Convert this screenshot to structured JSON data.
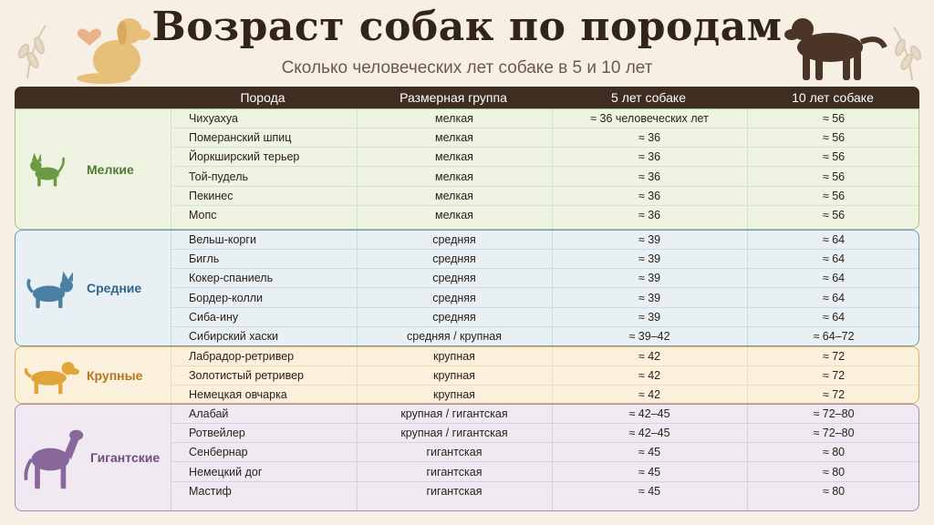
{
  "title": "Возраст собак по породам",
  "subtitle": "Сколько человеческих лет собаке в 5 и 10 лет",
  "columns": [
    "Порода",
    "Размерная группа",
    "5 лет собаке",
    "10 лет собаке"
  ],
  "colors": {
    "header": "#3f2d22",
    "small": "#5f8a3c",
    "medium": "#3f7196",
    "large": "#d69c2f",
    "giant": "#7f5c8f"
  },
  "groups": [
    {
      "label": "Мелкие",
      "icon": "small-dog-icon",
      "rows": [
        {
          "breed": "Чихуахуа",
          "size": "мелкая",
          "age5": "≈ 36 человеческих лет",
          "age10": "≈ 56"
        },
        {
          "breed": "Померанский шпиц",
          "size": "мелкая",
          "age5": "≈ 36",
          "age10": "≈ 56"
        },
        {
          "breed": "Йоркширский терьер",
          "size": "мелкая",
          "age5": "≈ 36",
          "age10": "≈ 56"
        },
        {
          "breed": "Той-пудель",
          "size": "мелкая",
          "age5": "≈ 36",
          "age10": "≈ 56"
        },
        {
          "breed": "Пекинес",
          "size": "мелкая",
          "age5": "≈ 36",
          "age10": "≈ 56"
        },
        {
          "breed": "Мопс",
          "size": "мелкая",
          "age5": "≈ 36",
          "age10": "≈ 56"
        }
      ]
    },
    {
      "label": "Средние",
      "icon": "medium-dog-icon",
      "rows": [
        {
          "breed": "Вельш-корги",
          "size": "средняя",
          "age5": "≈ 39",
          "age10": "≈ 64"
        },
        {
          "breed": "Бигль",
          "size": "средняя",
          "age5": "≈ 39",
          "age10": "≈ 64"
        },
        {
          "breed": "Кокер-спаниель",
          "size": "средняя",
          "age5": "≈ 39",
          "age10": "≈ 64"
        },
        {
          "breed": "Бордер-колли",
          "size": "средняя",
          "age5": "≈ 39",
          "age10": "≈ 64"
        },
        {
          "breed": "Сиба-ину",
          "size": "средняя",
          "age5": "≈ 39",
          "age10": "≈ 64"
        },
        {
          "breed": "Сибирский хаски",
          "size": "средняя / крупная",
          "age5": "≈ 39–42",
          "age10": "≈ 64–72"
        }
      ]
    },
    {
      "label": "Крупные",
      "icon": "large-dog-icon",
      "rows": [
        {
          "breed": "Лабрадор-ретривер",
          "size": "крупная",
          "age5": "≈ 42",
          "age10": "≈ 72"
        },
        {
          "breed": "Золотистый ретривер",
          "size": "крупная",
          "age5": "≈ 42",
          "age10": "≈ 72"
        },
        {
          "breed": "Немецкая овчарка",
          "size": "крупная",
          "age5": "≈ 42",
          "age10": "≈ 72"
        }
      ]
    },
    {
      "label": "Гигантские",
      "icon": "giant-dog-icon",
      "rows": [
        {
          "breed": "Алабай",
          "size": "крупная / гигантская",
          "age5": "≈ 42–45",
          "age10": "≈ 72–80"
        },
        {
          "breed": "Ротвейлер",
          "size": "крупная / гигантская",
          "age5": "≈ 42–45",
          "age10": "≈ 72–80"
        },
        {
          "breed": "Сенбернар",
          "size": "гигантская",
          "age5": "≈ 45",
          "age10": "≈ 80"
        },
        {
          "breed": "Немецкий дог",
          "size": "гигантская",
          "age5": "≈ 45",
          "age10": "≈ 80"
        },
        {
          "breed": "Мастиф",
          "size": "гигантская",
          "age5": "≈ 45",
          "age10": "≈ 80"
        }
      ]
    }
  ]
}
